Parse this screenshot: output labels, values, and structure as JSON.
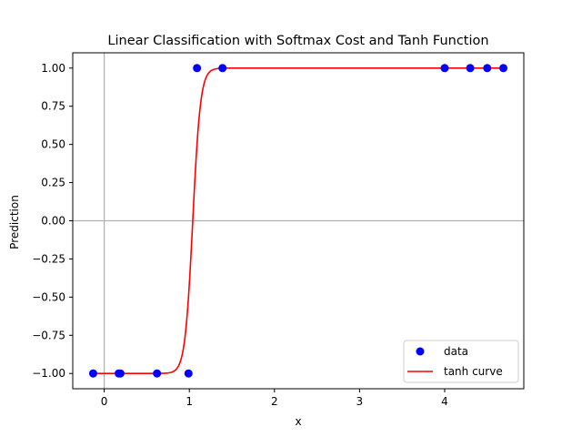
{
  "chart_data": {
    "type": "scatter",
    "title": "Linear Classification with Softmax Cost and Tanh Function",
    "xlabel": "x",
    "ylabel": "Prediction",
    "xlim": [
      -0.37,
      4.93
    ],
    "ylim": [
      -1.1,
      1.1
    ],
    "x_ticks": [
      0,
      1,
      2,
      3,
      4
    ],
    "y_ticks": [
      -1.0,
      -0.75,
      -0.5,
      -0.25,
      0.0,
      0.25,
      0.5,
      0.75,
      1.0
    ],
    "x_tick_labels": [
      "0",
      "1",
      "2",
      "3",
      "4"
    ],
    "y_tick_labels": [
      "−1.00",
      "−0.75",
      "−0.50",
      "−0.25",
      "0.00",
      "0.25",
      "0.50",
      "0.75",
      "1.00"
    ],
    "grid": false,
    "reference_lines": {
      "x": 0,
      "y": 0,
      "color": "#b0b0b0"
    },
    "legend_position": "lower-right",
    "series": [
      {
        "name": "data",
        "kind": "scatter",
        "color": "#0000ff",
        "points": [
          {
            "x": -0.13,
            "y": -1
          },
          {
            "x": 0.17,
            "y": -1
          },
          {
            "x": 0.19,
            "y": -1
          },
          {
            "x": 0.62,
            "y": -1
          },
          {
            "x": 0.99,
            "y": -1
          },
          {
            "x": 1.09,
            "y": 1
          },
          {
            "x": 1.39,
            "y": 1
          },
          {
            "x": 4.0,
            "y": 1
          },
          {
            "x": 4.3,
            "y": 1
          },
          {
            "x": 4.5,
            "y": 1
          },
          {
            "x": 4.69,
            "y": 1
          }
        ]
      },
      {
        "name": "tanh curve",
        "kind": "line",
        "color": "#ff0000",
        "function": "tanh",
        "center": 1.04,
        "steepness": 11,
        "x_range": [
          -0.13,
          4.69
        ]
      }
    ]
  }
}
